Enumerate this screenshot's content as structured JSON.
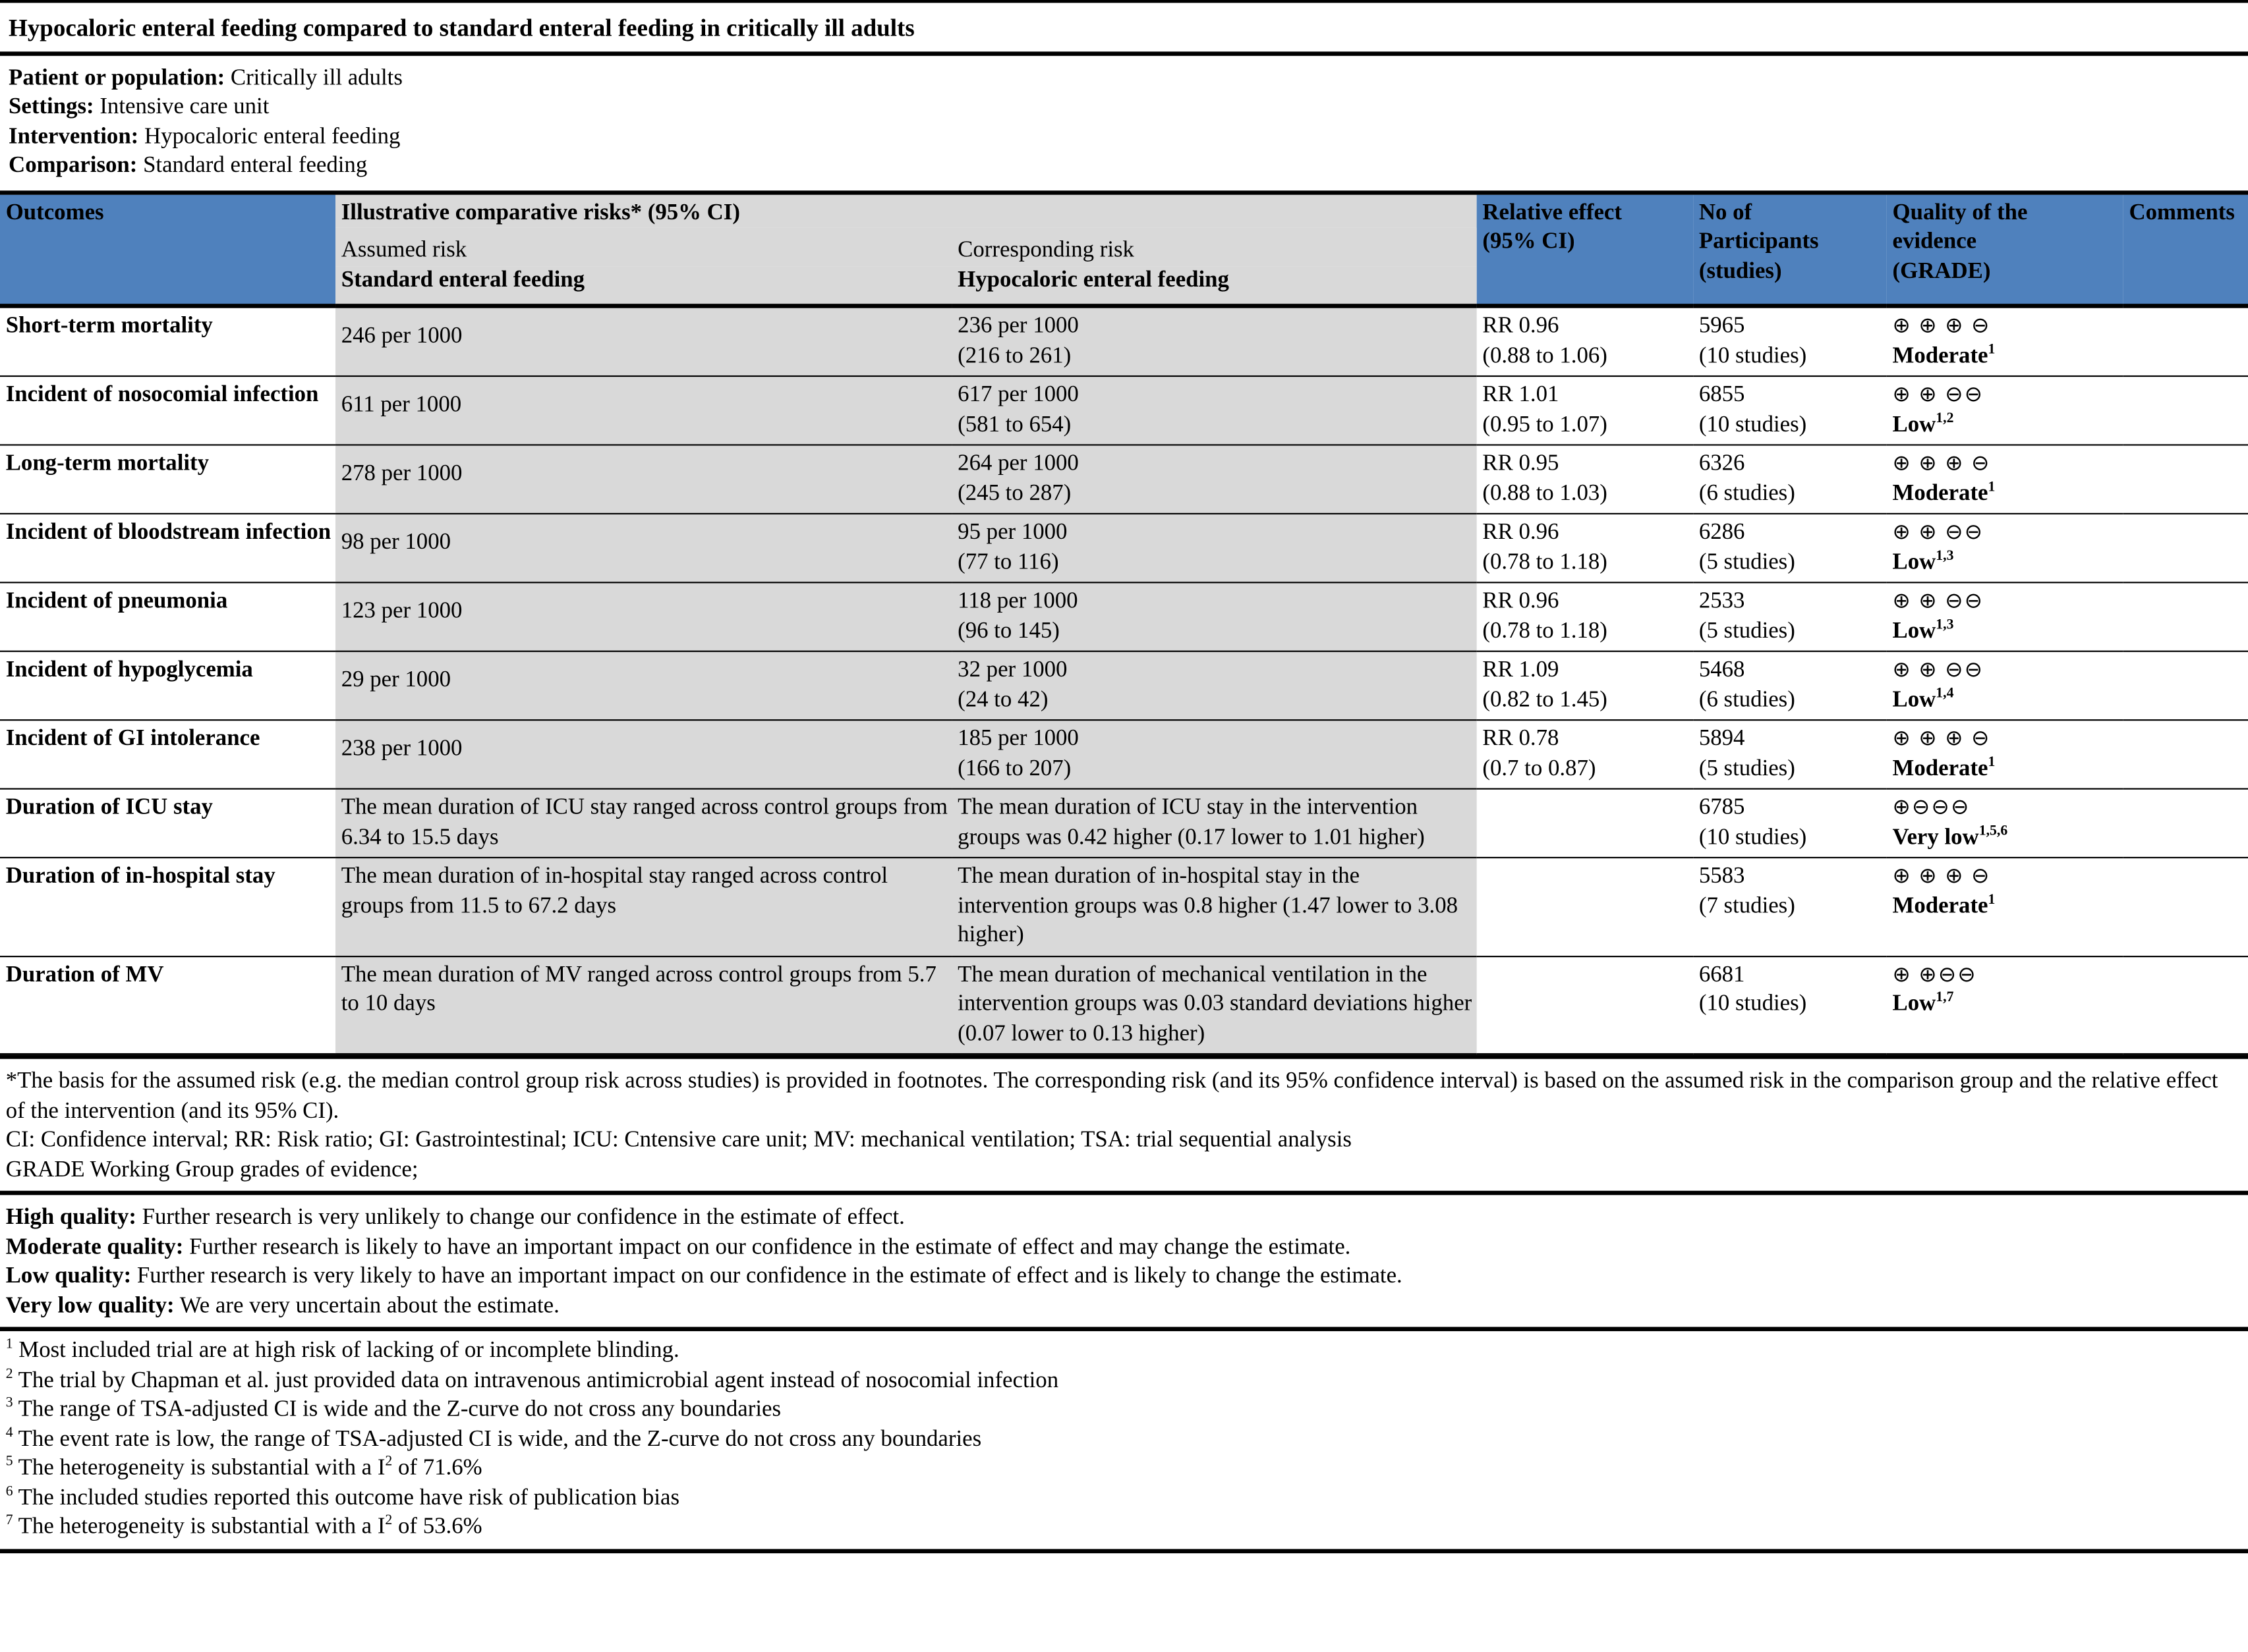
{
  "title": "Hypocaloric enteral feeding compared to standard enteral feeding in critically ill adults",
  "info": [
    {
      "label": "Patient or population:",
      "text": "Critically ill adults"
    },
    {
      "label": "Settings:",
      "text": "Intensive care unit"
    },
    {
      "label": "Intervention:",
      "text": "Hypocaloric enteral feeding"
    },
    {
      "label": "Comparison:",
      "text": "Standard enteral feeding"
    }
  ],
  "table": {
    "header": {
      "outcomes": "Outcomes",
      "illustrative": "Illustrative comparative risks* (95% CI)",
      "assumed": "Assumed risk",
      "corresponding": "Corresponding risk",
      "assumed_group": "Standard enteral feeding",
      "corresponding_group": "Hypocaloric enteral feeding",
      "relative": "Relative effect\n(95% CI)",
      "participants": "No of\nParticipants\n(studies)",
      "quality": "Quality of the\nevidence\n(GRADE)",
      "comments": "Comments"
    },
    "rows": [
      {
        "outcome": "Short-term mortality",
        "assumed": "246 per 1000",
        "corresponding": "236 per 1000\n(216 to 261)",
        "relative": "RR 0.96\n(0.88 to 1.06)",
        "participants": "5965\n(10 studies)",
        "symbols": "⊕ ⊕ ⊕ ⊖",
        "quality": "Moderate",
        "sup": "1"
      },
      {
        "outcome": "Incident of nosocomial infection",
        "assumed": "611 per 1000",
        "corresponding": "617 per 1000\n(581 to 654)",
        "relative": "RR 1.01\n(0.95 to 1.07)",
        "participants": "6855\n(10 studies)",
        "symbols": "⊕ ⊕ ⊖⊖",
        "quality": "Low",
        "sup": "1,2"
      },
      {
        "outcome": "Long-term mortality",
        "assumed": "278 per 1000",
        "corresponding": "264 per 1000\n(245 to 287)",
        "relative": "RR 0.95\n(0.88 to 1.03)",
        "participants": "6326\n(6 studies)",
        "symbols": "⊕ ⊕ ⊕ ⊖",
        "quality": "Moderate",
        "sup": "1"
      },
      {
        "outcome": "Incident of bloodstream infection",
        "assumed": "98 per 1000",
        "corresponding": "95 per 1000\n(77 to 116)",
        "relative": "RR 0.96\n(0.78 to 1.18)",
        "participants": "6286\n(5 studies)",
        "symbols": "⊕ ⊕ ⊖⊖",
        "quality": "Low",
        "sup": "1,3"
      },
      {
        "outcome": "Incident of pneumonia",
        "assumed": "123 per 1000",
        "corresponding": "118 per 1000\n(96 to 145)",
        "relative": "RR 0.96\n(0.78 to 1.18)",
        "participants": "2533\n(5 studies)",
        "symbols": "⊕ ⊕ ⊖⊖",
        "quality": "Low",
        "sup": "1,3"
      },
      {
        "outcome": "Incident of hypoglycemia",
        "assumed": "29 per 1000",
        "corresponding": "32 per 1000\n(24 to 42)",
        "relative": "RR 1.09\n(0.82 to 1.45)",
        "participants": "5468\n(6 studies)",
        "symbols": "⊕ ⊕ ⊖⊖",
        "quality": "Low",
        "sup": "1,4"
      },
      {
        "outcome": "Incident of GI intolerance",
        "assumed": "238 per 1000",
        "corresponding": "185 per 1000\n(166 to 207)",
        "relative": "RR 0.78\n(0.7 to 0.87)",
        "participants": "5894\n(5 studies)",
        "symbols": "⊕ ⊕ ⊕ ⊖",
        "quality": "Moderate",
        "sup": "1"
      },
      {
        "outcome": "Duration of ICU stay",
        "assumed": "The mean duration of ICU stay ranged across control groups from 6.34 to 15.5 days",
        "corresponding": "The mean duration of ICU stay in the intervention groups was 0.42 higher (0.17 lower to 1.01 higher)",
        "relative": null,
        "participants": "6785\n(10 studies)",
        "symbols": "⊕⊖⊖⊖",
        "quality": "Very low",
        "sup": "1,5,6"
      },
      {
        "outcome": "Duration of in-hospital stay",
        "assumed": "The mean duration of in-hospital stay ranged across control groups from 11.5 to 67.2 days",
        "corresponding": "The mean duration of in-hospital stay in the intervention groups was 0.8 higher (1.47 lower to 3.08 higher)",
        "relative": null,
        "participants": "5583\n(7 studies)",
        "symbols": "⊕ ⊕ ⊕ ⊖",
        "quality": "Moderate",
        "sup": "1"
      },
      {
        "outcome": "Duration of MV",
        "assumed": "The mean duration of MV ranged across control groups from 5.7 to 10 days",
        "corresponding": "The mean duration of mechanical ventilation in the intervention groups was 0.03 standard deviations higher (0.07 lower to 0.13 higher)",
        "relative": null,
        "participants": "6681\n(10 studies)",
        "symbols": "⊕ ⊕⊖⊖",
        "quality": "Low",
        "sup": "1,7"
      }
    ]
  },
  "basis_note": "*The basis for the assumed risk (e.g. the median control group risk across studies) is provided in footnotes. The corresponding risk (and its 95% confidence interval) is based on the assumed risk in the comparison group and the relative effect of the intervention (and its 95% CI).",
  "abbreviations": "CI: Confidence interval; RR: Risk ratio; GI: Gastrointestinal; ICU: Cntensive care unit; MV: mechanical ventilation; TSA: trial sequential analysis",
  "grade_heading": "GRADE Working Group grades of evidence;",
  "grades": [
    {
      "label": "High quality:",
      "text": "Further research is very unlikely to change our confidence in the estimate of effect."
    },
    {
      "label": "Moderate quality:",
      "text": "Further research is likely to have an important impact on our confidence in the estimate of effect and may change the estimate."
    },
    {
      "label": "Low quality:",
      "text": "Further research is very likely to have an important impact on our confidence in the estimate of effect and is likely to change the estimate."
    },
    {
      "label": "Very low quality:",
      "text": "We are very uncertain about the estimate."
    }
  ],
  "footnotes": [
    {
      "num": "1",
      "text": "Most included trial are at high risk of lacking of or incomplete blinding."
    },
    {
      "num": "2",
      "text": "The trial by Chapman et al. just provided data on intravenous antimicrobial agent instead of nosocomial infection"
    },
    {
      "num": "3",
      "text": "The range of TSA-adjusted CI is wide and the Z-curve do not cross any boundaries"
    },
    {
      "num": "4",
      "text": "The event rate is low, the range of TSA-adjusted CI is wide, and the Z-curve do not cross any boundaries"
    },
    {
      "num": "5",
      "text": "The heterogeneity is substantial with a I",
      "sup": "2",
      "after": " of 71.6%"
    },
    {
      "num": "6",
      "text": "The included studies reported this outcome have risk of publication bias"
    },
    {
      "num": "7",
      "text": "The heterogeneity is substantial with a I",
      "sup": "2",
      "after": " of 53.6%"
    }
  ]
}
